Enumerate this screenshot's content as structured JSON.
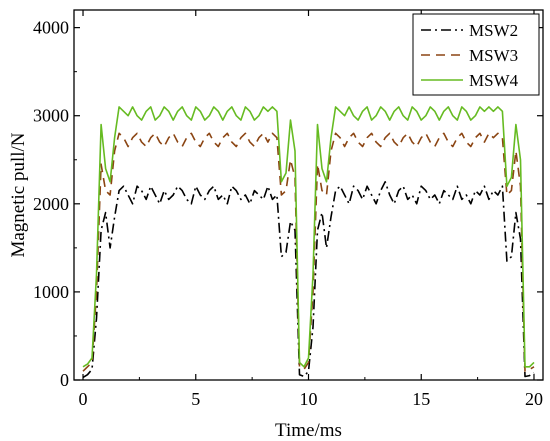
{
  "chart_data": {
    "type": "line",
    "title": "",
    "xlabel": "Time/ms",
    "ylabel": "Magnetic pull/N",
    "xlim": [
      -0.4,
      20.4
    ],
    "ylim": [
      0,
      4200
    ],
    "x_ticks": [
      0,
      5,
      10,
      15,
      20
    ],
    "y_ticks": [
      0,
      1000,
      2000,
      3000,
      4000
    ],
    "x_tick_labels": [
      "0",
      "5",
      "10",
      "15",
      "20"
    ],
    "y_tick_labels": [
      "0",
      "1000",
      "2000",
      "3000",
      "4000"
    ],
    "grid": false,
    "legend_position": "top-right",
    "series": [
      {
        "name": "MSW2",
        "color": "#000000",
        "dash": "dash-dot",
        "x": [
          0.0,
          0.2,
          0.4,
          0.6,
          0.8,
          1.0,
          1.2,
          1.4,
          1.6,
          1.8,
          2.0,
          2.2,
          2.4,
          2.6,
          2.8,
          3.0,
          3.2,
          3.4,
          3.6,
          3.8,
          4.0,
          4.2,
          4.4,
          4.6,
          4.8,
          5.0,
          5.2,
          5.4,
          5.6,
          5.8,
          6.0,
          6.2,
          6.4,
          6.6,
          6.8,
          7.0,
          7.2,
          7.4,
          7.6,
          7.8,
          8.0,
          8.2,
          8.4,
          8.6,
          8.8,
          9.0,
          9.2,
          9.4,
          9.6,
          9.8,
          10.0,
          10.2,
          10.4,
          10.6,
          10.8,
          11.0,
          11.2,
          11.4,
          11.6,
          11.8,
          12.0,
          12.2,
          12.4,
          12.6,
          12.8,
          13.0,
          13.2,
          13.4,
          13.6,
          13.8,
          14.0,
          14.2,
          14.4,
          14.6,
          14.8,
          15.0,
          15.2,
          15.4,
          15.6,
          15.8,
          16.0,
          16.2,
          16.4,
          16.6,
          16.8,
          17.0,
          17.2,
          17.4,
          17.6,
          17.8,
          18.0,
          18.2,
          18.4,
          18.6,
          18.8,
          19.0,
          19.2,
          19.4,
          19.6,
          19.8,
          20.0
        ],
        "values": [
          30,
          60,
          120,
          700,
          1700,
          1900,
          1500,
          1850,
          2150,
          2200,
          2100,
          2000,
          2200,
          2150,
          2050,
          2200,
          2100,
          2000,
          2150,
          2050,
          2100,
          2200,
          2150,
          2050,
          2000,
          2200,
          2100,
          2050,
          2150,
          2200,
          2050,
          2100,
          2000,
          2200,
          2150,
          2050,
          2100,
          2000,
          2150,
          2100,
          2050,
          2200,
          2050,
          2100,
          1400,
          1450,
          1800,
          1700,
          60,
          40,
          100,
          600,
          1700,
          1900,
          1500,
          1850,
          2150,
          2200,
          2100,
          2000,
          2200,
          2150,
          2050,
          2200,
          2100,
          2000,
          2150,
          2250,
          2100,
          2000,
          2150,
          2200,
          2050,
          2100,
          2000,
          2200,
          2150,
          2050,
          2100,
          2000,
          2150,
          2100,
          2050,
          2200,
          2050,
          2100,
          2000,
          2150,
          2100,
          2200,
          2050,
          2150,
          2100,
          2200,
          1350,
          1400,
          1900,
          1600,
          40,
          50,
          80
        ]
      },
      {
        "name": "MSW3",
        "color": "#8b4513",
        "dash": "dash",
        "x": [
          0.0,
          0.2,
          0.4,
          0.6,
          0.8,
          1.0,
          1.2,
          1.4,
          1.6,
          1.8,
          2.0,
          2.2,
          2.4,
          2.6,
          2.8,
          3.0,
          3.2,
          3.4,
          3.6,
          3.8,
          4.0,
          4.2,
          4.4,
          4.6,
          4.8,
          5.0,
          5.2,
          5.4,
          5.6,
          5.8,
          6.0,
          6.2,
          6.4,
          6.6,
          6.8,
          7.0,
          7.2,
          7.4,
          7.6,
          7.8,
          8.0,
          8.2,
          8.4,
          8.6,
          8.8,
          9.0,
          9.2,
          9.4,
          9.6,
          9.8,
          10.0,
          10.2,
          10.4,
          10.6,
          10.8,
          11.0,
          11.2,
          11.4,
          11.6,
          11.8,
          12.0,
          12.2,
          12.4,
          12.6,
          12.8,
          13.0,
          13.2,
          13.4,
          13.6,
          13.8,
          14.0,
          14.2,
          14.4,
          14.6,
          14.8,
          15.0,
          15.2,
          15.4,
          15.6,
          15.8,
          16.0,
          16.2,
          16.4,
          16.6,
          16.8,
          17.0,
          17.2,
          17.4,
          17.6,
          17.8,
          18.0,
          18.2,
          18.4,
          18.6,
          18.8,
          19.0,
          19.2,
          19.4,
          19.6,
          19.8,
          20.0
        ],
        "values": [
          100,
          150,
          200,
          1000,
          2450,
          2150,
          2100,
          2600,
          2800,
          2750,
          2650,
          2750,
          2800,
          2700,
          2650,
          2750,
          2800,
          2700,
          2650,
          2750,
          2800,
          2700,
          2650,
          2750,
          2800,
          2700,
          2650,
          2750,
          2800,
          2700,
          2650,
          2750,
          2800,
          2700,
          2650,
          2750,
          2800,
          2700,
          2650,
          2750,
          2800,
          2700,
          2800,
          2750,
          2100,
          2150,
          2500,
          2300,
          150,
          120,
          200,
          1000,
          2450,
          2150,
          2100,
          2600,
          2800,
          2750,
          2650,
          2750,
          2800,
          2700,
          2650,
          2750,
          2800,
          2700,
          2650,
          2750,
          2800,
          2700,
          2650,
          2750,
          2800,
          2700,
          2650,
          2750,
          2800,
          2700,
          2650,
          2750,
          2800,
          2700,
          2650,
          2750,
          2800,
          2700,
          2650,
          2750,
          2800,
          2700,
          2800,
          2750,
          2800,
          2750,
          2100,
          2150,
          2600,
          2200,
          100,
          120,
          150
        ]
      },
      {
        "name": "MSW4",
        "color": "#66bb22",
        "dash": "solid",
        "x": [
          0.0,
          0.2,
          0.4,
          0.6,
          0.8,
          1.0,
          1.2,
          1.4,
          1.6,
          1.8,
          2.0,
          2.2,
          2.4,
          2.6,
          2.8,
          3.0,
          3.2,
          3.4,
          3.6,
          3.8,
          4.0,
          4.2,
          4.4,
          4.6,
          4.8,
          5.0,
          5.2,
          5.4,
          5.6,
          5.8,
          6.0,
          6.2,
          6.4,
          6.6,
          6.8,
          7.0,
          7.2,
          7.4,
          7.6,
          7.8,
          8.0,
          8.2,
          8.4,
          8.6,
          8.8,
          9.0,
          9.2,
          9.4,
          9.6,
          9.8,
          10.0,
          10.2,
          10.4,
          10.6,
          10.8,
          11.0,
          11.2,
          11.4,
          11.6,
          11.8,
          12.0,
          12.2,
          12.4,
          12.6,
          12.8,
          13.0,
          13.2,
          13.4,
          13.6,
          13.8,
          14.0,
          14.2,
          14.4,
          14.6,
          14.8,
          15.0,
          15.2,
          15.4,
          15.6,
          15.8,
          16.0,
          16.2,
          16.4,
          16.6,
          16.8,
          17.0,
          17.2,
          17.4,
          17.6,
          17.8,
          18.0,
          18.2,
          18.4,
          18.6,
          18.8,
          19.0,
          19.2,
          19.4,
          19.6,
          19.8,
          20.0
        ],
        "values": [
          150,
          180,
          250,
          1200,
          2900,
          2400,
          2250,
          2750,
          3100,
          3050,
          3000,
          3100,
          3000,
          2950,
          3050,
          3100,
          2950,
          3000,
          3100,
          3050,
          2950,
          3050,
          3100,
          3000,
          2950,
          3100,
          3050,
          2950,
          3000,
          3100,
          3050,
          2950,
          3050,
          3100,
          3000,
          2950,
          3100,
          3050,
          2950,
          3000,
          3100,
          3050,
          3100,
          3050,
          2250,
          2350,
          2950,
          2600,
          200,
          150,
          250,
          1200,
          2900,
          2400,
          2250,
          2750,
          3100,
          3050,
          3000,
          3100,
          3000,
          2950,
          3050,
          3100,
          2950,
          3000,
          3100,
          3050,
          2950,
          3050,
          3100,
          3000,
          2950,
          3100,
          3050,
          2950,
          3000,
          3100,
          3050,
          2950,
          3050,
          3100,
          3000,
          2950,
          3100,
          3050,
          2950,
          3000,
          3100,
          3050,
          3100,
          3050,
          3100,
          3050,
          2200,
          2300,
          2900,
          2500,
          150,
          150,
          200
        ]
      }
    ]
  }
}
